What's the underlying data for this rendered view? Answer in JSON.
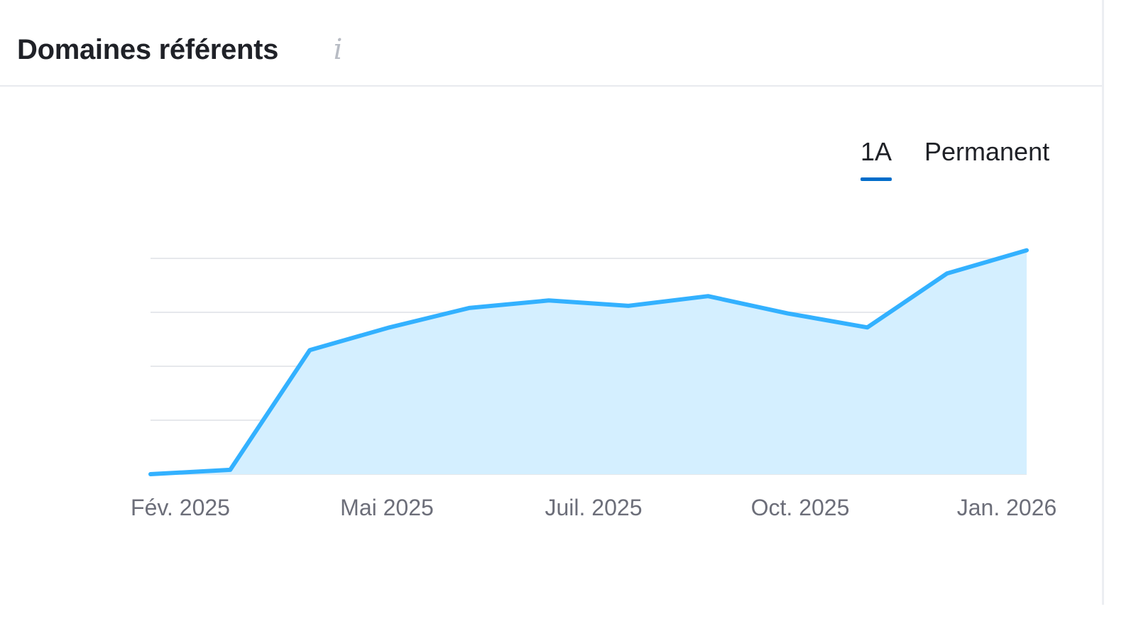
{
  "header": {
    "title": "Domaines référents",
    "info_icon": "info-icon"
  },
  "tabs": [
    {
      "label": "1A",
      "active": true
    },
    {
      "label": "Permanent",
      "active": false
    }
  ],
  "colors": {
    "line": "#33b1ff",
    "area": "#d4efff",
    "grid": "#e6e8ec",
    "active_tab": "#006dca"
  },
  "chart_data": {
    "type": "area",
    "title": "Domaines référents",
    "xlabel": "",
    "ylabel": "",
    "grid": true,
    "x_tick_labels": [
      "Fév. 2025",
      "Mai 2025",
      "Juil. 2025",
      "Oct. 2025",
      "Jan. 2026"
    ],
    "ylim": [
      0,
      4
    ],
    "series": [
      {
        "values": [
          0.0,
          0.08,
          2.3,
          2.72,
          3.08,
          3.22,
          3.12,
          3.3,
          2.98,
          2.72,
          3.72,
          4.15
        ]
      }
    ]
  }
}
